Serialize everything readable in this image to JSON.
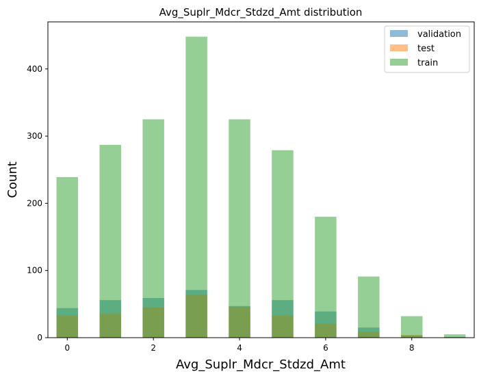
{
  "chart_data": {
    "type": "bar",
    "title": "Avg_Suplr_Mdcr_Stdzd_Amt distribution",
    "xlabel": "Avg_Suplr_Mdcr_Stdzd_Amt",
    "ylabel": "Count",
    "xlim": [
      -0.45,
      9.45
    ],
    "ylim": [
      0,
      470
    ],
    "x_ticks": [
      0,
      2,
      4,
      6,
      8
    ],
    "y_ticks": [
      0,
      100,
      200,
      300,
      400
    ],
    "bar_width": 0.5,
    "x": [
      0,
      1,
      2,
      3,
      4,
      5,
      6,
      7,
      8,
      9
    ],
    "legend_position": "top-right",
    "series": [
      {
        "name": "validation",
        "color": "#1f77b4",
        "opacity": 0.5,
        "values": [
          44,
          56,
          59,
          71,
          47,
          56,
          39,
          15,
          3,
          1
        ]
      },
      {
        "name": "test",
        "color": "#ff7f0e",
        "opacity": 0.5,
        "values": [
          33,
          36,
          45,
          64,
          46,
          33,
          21,
          9,
          4,
          1
        ]
      },
      {
        "name": "train",
        "color": "#2ca02c",
        "opacity": 0.5,
        "values": [
          239,
          287,
          325,
          448,
          325,
          279,
          180,
          91,
          32,
          5
        ]
      }
    ]
  }
}
